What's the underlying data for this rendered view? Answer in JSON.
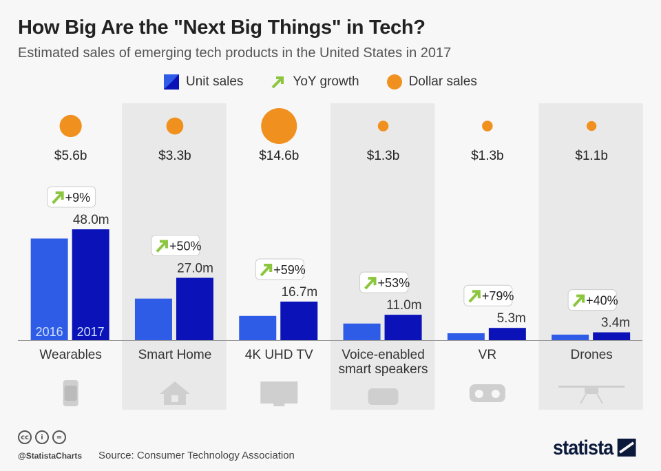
{
  "title": "How Big Are the \"Next Big Things\" in Tech?",
  "subtitle": "Estimated sales of emerging tech products in the United States in 2017",
  "legend": {
    "unit_sales": "Unit sales",
    "yoy_growth": "YoY growth",
    "dollar_sales": "Dollar sales"
  },
  "footer": {
    "handle": "@StatistaCharts",
    "source": "Source: Consumer Technology Association",
    "logo": "statista"
  },
  "colors": {
    "bar_2016": "#2f5ce6",
    "bar_2017": "#0a12b8",
    "dollar": "#f0901e",
    "arrow": "#8cc63f",
    "shade": "#e9e9e9"
  },
  "chart_data": {
    "type": "bar",
    "categories": [
      "Wearables",
      "Smart Home",
      "4K UHD TV",
      "Voice-enabled smart speakers",
      "VR",
      "Drones"
    ],
    "category_lines": [
      [
        "Wearables"
      ],
      [
        "Smart Home"
      ],
      [
        "4K UHD TV"
      ],
      [
        "Voice-enabled",
        "smart speakers"
      ],
      [
        "VR"
      ],
      [
        "Drones"
      ]
    ],
    "icons": [
      "smartwatch-icon",
      "house-icon",
      "tv-icon",
      "smart-speaker-icon",
      "vr-headset-icon",
      "drone-icon"
    ],
    "series": [
      {
        "name": "2016",
        "values": [
          44.0,
          18.0,
          10.5,
          7.2,
          3.0,
          2.4
        ]
      },
      {
        "name": "2017",
        "values": [
          48.0,
          27.0,
          16.7,
          11.0,
          5.3,
          3.4
        ]
      }
    ],
    "unit_labels_2017": [
      "48.0m",
      "27.0m",
      "16.7m",
      "11.0m",
      "5.3m",
      "3.4m"
    ],
    "yoy_growth": [
      "+9%",
      "+50%",
      "+59%",
      "+53%",
      "+79%",
      "+40%"
    ],
    "dollar_sales_billion": [
      5.6,
      3.3,
      14.6,
      1.3,
      1.3,
      1.1
    ],
    "dollar_labels": [
      "$5.6b",
      "$3.3b",
      "$14.6b",
      "$1.3b",
      "$1.3b",
      "$1.1b"
    ],
    "ylabel": "Unit sales",
    "ylim": [
      0,
      48
    ]
  }
}
